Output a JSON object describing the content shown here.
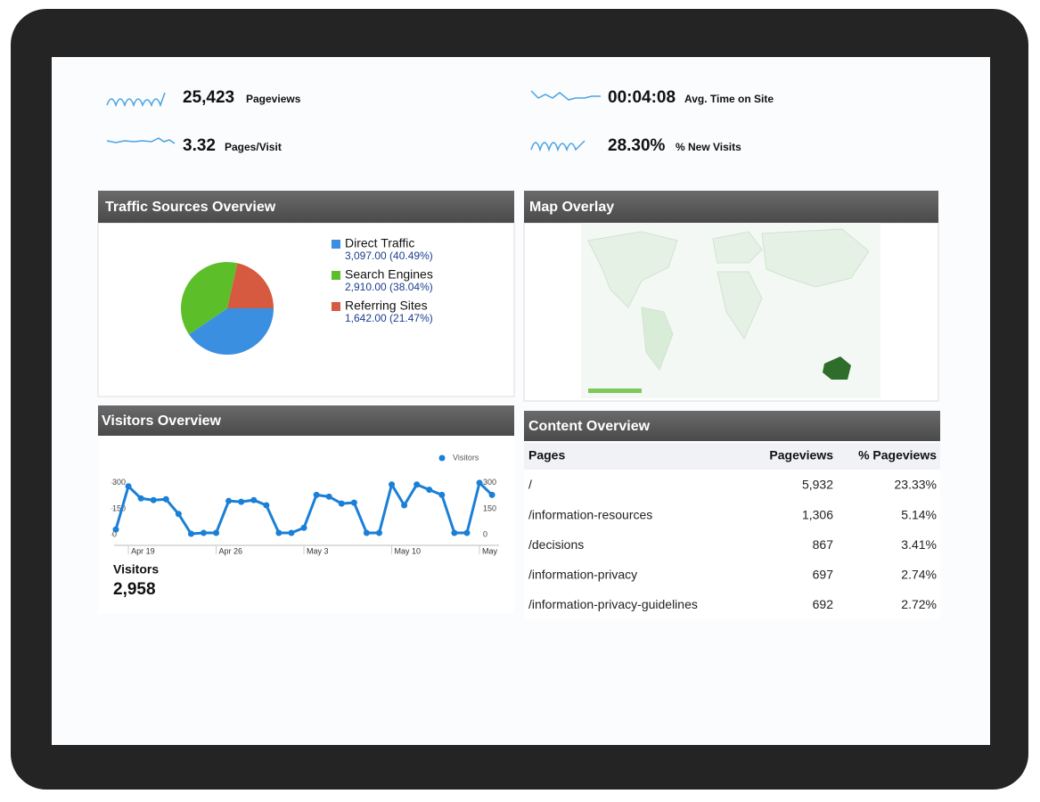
{
  "metrics": [
    {
      "value": "25,423",
      "label": "Pageviews"
    },
    {
      "value": "00:04:08",
      "label": "Avg. Time on Site"
    },
    {
      "value": "3.32",
      "label": "Pages/Visit"
    },
    {
      "value": "28.30%",
      "label": "% New Visits"
    }
  ],
  "traffic": {
    "title": "Traffic Sources Overview",
    "items": [
      {
        "name": "Direct Traffic",
        "detail": "3,097.00 (40.49%)",
        "share": 40.49,
        "color": "#3a8fe0"
      },
      {
        "name": "Search Engines",
        "detail": "2,910.00 (38.04%)",
        "share": 38.04,
        "color": "#5cbf2a"
      },
      {
        "name": "Referring Sites",
        "detail": "1,642.00 (21.47%)",
        "share": 21.47,
        "color": "#d65a3f"
      }
    ]
  },
  "map": {
    "title": "Map Overlay"
  },
  "visitors": {
    "title": "Visitors Overview",
    "legend": "Visitors",
    "color": "#1a7fd6",
    "categories": [
      null,
      "Apr 19",
      null,
      null,
      null,
      null,
      null,
      null,
      "Apr 26",
      null,
      null,
      null,
      null,
      null,
      null,
      "May 3",
      null,
      null,
      null,
      null,
      null,
      null,
      "May 10",
      null,
      null,
      null,
      null,
      null,
      null,
      "May",
      null
    ],
    "values": [
      30,
      280,
      210,
      200,
      205,
      120,
      5,
      10,
      10,
      195,
      190,
      200,
      170,
      10,
      10,
      40,
      230,
      220,
      180,
      185,
      10,
      10,
      290,
      170,
      290,
      260,
      230,
      10,
      10,
      300,
      230
    ],
    "ylim": [
      0,
      330
    ],
    "yticks": [
      0,
      150,
      300
    ],
    "summary_label": "Visitors",
    "summary_value": "2,958"
  },
  "content": {
    "title": "Content Overview",
    "columns": [
      "Pages",
      "Pageviews",
      "% Pageviews"
    ],
    "rows": [
      [
        "/",
        "5,932",
        "23.33%"
      ],
      [
        "/information-resources",
        "1,306",
        "5.14%"
      ],
      [
        "/decisions",
        "867",
        "3.41%"
      ],
      [
        "/information-privacy",
        "697",
        "2.74%"
      ],
      [
        "/information-privacy-guidelines",
        "692",
        "2.72%"
      ]
    ]
  }
}
